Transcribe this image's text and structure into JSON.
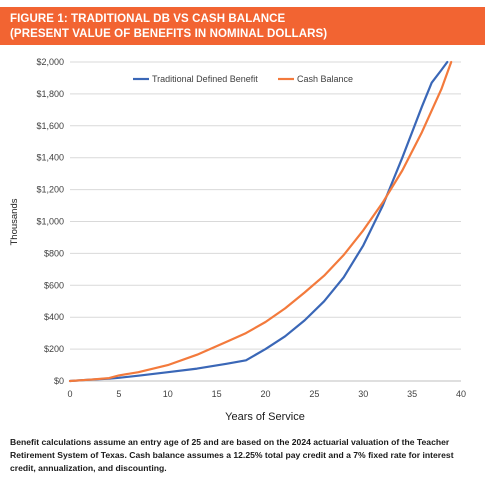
{
  "header": {
    "line1": "FIGURE 1: TRADITIONAL DB VS CASH BALANCE",
    "line2": "(PRESENT VALUE OF BENEFITS IN NOMINAL DOLLARS)"
  },
  "colors": {
    "banner": "#f26432",
    "db_line": "#3a67b7",
    "cb_line": "#f37a3c",
    "grid": "#d9d9d9"
  },
  "chart_data": {
    "type": "line",
    "xlabel": "Years of Service",
    "ylabel": "Thousands",
    "xlim": [
      0,
      40
    ],
    "ylim": [
      0,
      2000
    ],
    "x_ticks": [
      "0",
      "5",
      "10",
      "15",
      "20",
      "25",
      "30",
      "35",
      "40"
    ],
    "y_ticks": [
      "$0",
      "$200",
      "$400",
      "$600",
      "$800",
      "$1,000",
      "$1,200",
      "$1,400",
      "$1,600",
      "$1,800",
      "$2,000"
    ],
    "grid": "horizontal",
    "legend_position": "top",
    "series": [
      {
        "name": "Traditional Defined Benefit",
        "color": "#3a67b7",
        "points": [
          [
            0,
            0
          ],
          [
            2,
            8
          ],
          [
            4,
            15
          ],
          [
            5,
            20
          ],
          [
            7,
            33
          ],
          [
            10,
            55
          ],
          [
            13,
            78
          ],
          [
            16,
            108
          ],
          [
            18,
            130
          ],
          [
            20,
            200
          ],
          [
            22,
            280
          ],
          [
            24,
            380
          ],
          [
            26,
            500
          ],
          [
            28,
            650
          ],
          [
            30,
            850
          ],
          [
            32,
            1100
          ],
          [
            34,
            1400
          ],
          [
            36,
            1720
          ],
          [
            37,
            1870
          ],
          [
            38,
            1950
          ],
          [
            38.6,
            2000
          ]
        ]
      },
      {
        "name": "Cash Balance",
        "color": "#f37a3c",
        "points": [
          [
            0,
            0
          ],
          [
            2,
            8
          ],
          [
            4,
            18
          ],
          [
            5,
            35
          ],
          [
            7,
            55
          ],
          [
            10,
            100
          ],
          [
            13,
            165
          ],
          [
            16,
            245
          ],
          [
            18,
            300
          ],
          [
            20,
            370
          ],
          [
            22,
            455
          ],
          [
            24,
            555
          ],
          [
            26,
            660
          ],
          [
            28,
            790
          ],
          [
            30,
            945
          ],
          [
            32,
            1120
          ],
          [
            34,
            1320
          ],
          [
            36,
            1560
          ],
          [
            38,
            1830
          ],
          [
            39,
            2000
          ]
        ]
      }
    ]
  },
  "footnote": "Benefit calculations assume an entry age of 25 and are based on the 2024 actuarial valuation of the Teacher Retirement System of Texas. Cash balance assumes a 12.25% total pay credit and a 7% fixed rate for interest credit, annualization, and discounting."
}
